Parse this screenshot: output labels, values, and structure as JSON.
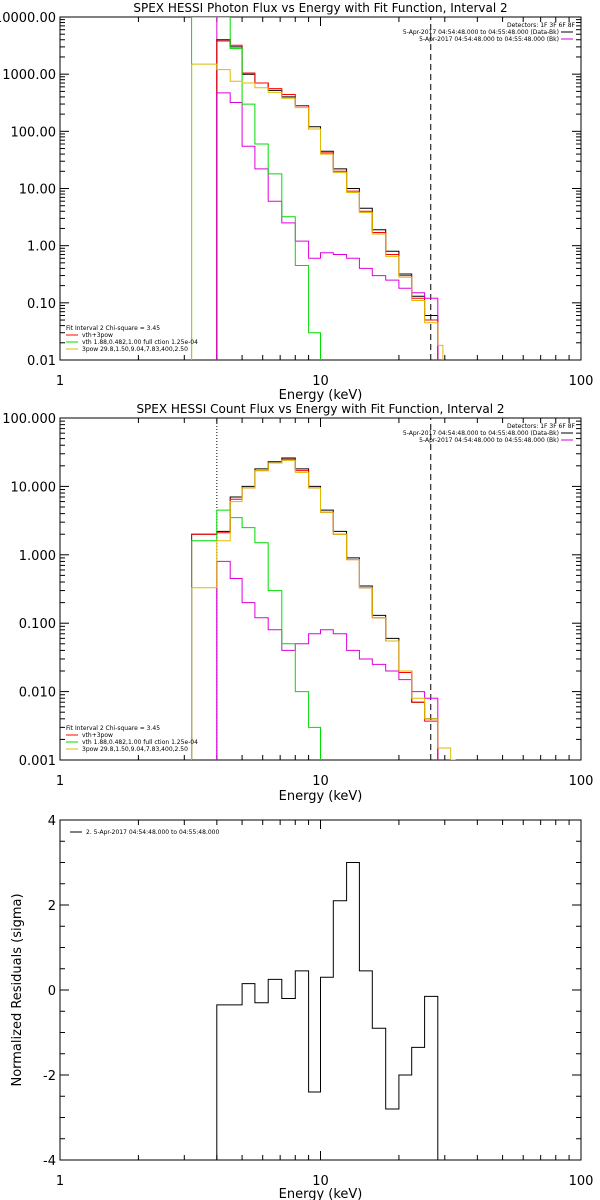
{
  "chart_data": [
    {
      "type": "line",
      "title": "SPEX HESSI Photon Flux vs Energy with Fit Function, Interval 2",
      "xlabel": "Energy (keV)",
      "ylabel": "",
      "xscale": "log",
      "yscale": "log",
      "xlim": [
        1,
        100
      ],
      "ylim": [
        0.01,
        10000
      ],
      "x_ticks": [
        "1",
        "10",
        "100"
      ],
      "y_ticks": [
        "10000.00",
        "1000.00",
        "100.00",
        "10.00",
        "1.00",
        "0.10",
        "0.01"
      ],
      "y_tick_values": [
        10000,
        1000,
        100,
        10,
        1,
        0.1,
        0.01
      ],
      "detectors_text": "Detectors: 1F 3F 6F 8F",
      "legend_right": [
        {
          "text": "5-Apr-2017 04:54:48.000 to 04:55:48.000 (Data-Bk)",
          "color": "#000000"
        },
        {
          "text": "5-Apr-2017 04:54:48.000 to 04:55:48.000 (Bk)",
          "color": "#dd00dd"
        }
      ],
      "legend_left_header": "Fit Interval 2   Chi-square = 3.45",
      "legend_left": [
        {
          "text": "vth+3pow",
          "color": "#ff0000"
        },
        {
          "text": "vth 1.88,0.482,1.00  full ction 1.25e-04",
          "color": "#00dd00"
        },
        {
          "text": "3pow 29.8,1.50,9.04,7.83,400,2.50",
          "color": "#ddbb00"
        }
      ],
      "vlines": [
        {
          "x": 4.0,
          "style": "solid",
          "color": "#dd00dd"
        },
        {
          "x": 26.5,
          "style": "dashed",
          "color": "#000000"
        }
      ],
      "series": [
        {
          "color": "#000000",
          "edges": [
            4,
            4.5,
            5,
            5.6,
            6.3,
            7.1,
            8,
            9,
            10,
            11.2,
            12.6,
            14.1,
            15.8,
            17.8,
            20,
            22.4,
            25.1,
            28.2
          ],
          "values": [
            4000,
            3000,
            1000,
            700,
            520,
            400,
            280,
            120,
            45,
            22,
            10,
            4.5,
            1.9,
            0.8,
            0.32,
            0.13,
            0.06
          ]
        },
        {
          "color": "#ff0000",
          "edges": [
            4,
            4.5,
            5,
            5.6,
            6.3,
            7.1,
            8,
            9,
            10,
            11.2,
            12.6,
            14.1,
            15.8,
            17.8,
            20,
            22.4,
            25.1,
            28.2
          ],
          "values": [
            3800,
            3200,
            1050,
            700,
            560,
            440,
            280,
            110,
            42,
            20,
            9,
            4,
            1.7,
            0.7,
            0.3,
            0.12,
            0.05
          ]
        },
        {
          "color": "#dd00dd",
          "edges": [
            4,
            4.5,
            5,
            5.6,
            6.3,
            7.1,
            8,
            9,
            10,
            11.2,
            12.6,
            14.1,
            15.8,
            17.8,
            20,
            22.4,
            25.1,
            28.2
          ],
          "values": [
            470,
            320,
            55,
            22,
            6,
            2.5,
            1.2,
            0.6,
            0.75,
            0.7,
            0.6,
            0.4,
            0.3,
            0.25,
            0.18,
            0.15,
            0.12
          ]
        },
        {
          "color": "#00dd00",
          "edges": [
            3.2,
            4,
            4.5,
            5,
            5.6,
            6.3,
            7.1,
            8,
            9,
            10
          ],
          "values": [
            10000,
            10000,
            2800,
            300,
            60,
            18,
            3.2,
            0.45,
            0.03
          ]
        },
        {
          "color": "#ddbb00",
          "edges": [
            3.2,
            4,
            4.5,
            5,
            5.6,
            6.3,
            7.1,
            8,
            9,
            10,
            11.2,
            12.6,
            14.1,
            15.8,
            17.8,
            20,
            22.4,
            25.1,
            28.2,
            29.5
          ],
          "values": [
            1500,
            1200,
            750,
            700,
            580,
            480,
            380,
            260,
            110,
            40,
            19,
            8.5,
            3.8,
            1.6,
            0.65,
            0.28,
            0.11,
            0.045,
            0.018
          ]
        }
      ]
    },
    {
      "type": "line",
      "title": "SPEX HESSI Count Flux vs Energy with Fit Function, Interval 2",
      "xlabel": "Energy (keV)",
      "ylabel": "",
      "xscale": "log",
      "yscale": "log",
      "xlim": [
        1,
        100
      ],
      "ylim": [
        0.001,
        100
      ],
      "x_ticks": [
        "1",
        "10",
        "100"
      ],
      "y_ticks": [
        "100.000",
        "10.000",
        "1.000",
        "0.100",
        "0.010",
        "0.001"
      ],
      "y_tick_values": [
        100,
        10,
        1,
        0.1,
        0.01,
        0.001
      ],
      "detectors_text": "Detectors: 1F 3F 6F 8F",
      "legend_right": [
        {
          "text": "5-Apr-2017 04:54:48.000 to 04:55:48.000 (Data-Bk)",
          "color": "#000000"
        },
        {
          "text": "5-Apr-2017 04:54:48.000 to 04:55:48.000 (Bk)",
          "color": "#dd00dd"
        }
      ],
      "legend_left_header": "Fit Interval 2   Chi-square = 3.45",
      "legend_left": [
        {
          "text": "vth+3pow",
          "color": "#ff0000"
        },
        {
          "text": "vth 1.88,0.482,1.00  full ction 1.25e-04",
          "color": "#00dd00"
        },
        {
          "text": "3pow 29.8,1.50,9.04,7.83,400,2.50",
          "color": "#ddbb00"
        }
      ],
      "vlines": [
        {
          "x": 4.0,
          "style": "dotted",
          "color": "#000000"
        },
        {
          "x": 4.0,
          "style": "solid",
          "color": "#dd00dd",
          "from": 0.001,
          "to": 0.8
        },
        {
          "x": 26.5,
          "style": "dashed",
          "color": "#000000"
        }
      ],
      "series": [
        {
          "color": "#000000",
          "edges": [
            3.2,
            4,
            4.5,
            5,
            5.6,
            6.3,
            7.1,
            8,
            9,
            10,
            11.2,
            12.6,
            14.1,
            15.8,
            17.8,
            20,
            22.4,
            25.1,
            28.2
          ],
          "values": [
            2.0,
            2.2,
            7,
            10,
            18,
            23,
            26,
            18,
            10,
            4.5,
            2.2,
            0.9,
            0.35,
            0.13,
            0.06,
            0.02,
            0.007,
            0.004
          ]
        },
        {
          "color": "#ff0000",
          "edges": [
            3.2,
            4,
            4.5,
            5,
            5.6,
            6.3,
            7.1,
            8,
            9,
            10,
            11.2,
            12.6,
            14.1,
            15.8,
            17.8,
            20,
            22.4,
            25.1,
            28.2
          ],
          "values": [
            2.0,
            2.1,
            6.5,
            9.5,
            17,
            22,
            25,
            17,
            9.5,
            4.2,
            2.0,
            0.85,
            0.33,
            0.12,
            0.055,
            0.019,
            0.007,
            0.0037
          ]
        },
        {
          "color": "#dd00dd",
          "edges": [
            4,
            4.5,
            5,
            5.6,
            6.3,
            7.1,
            8,
            9,
            10,
            11.2,
            12.6,
            14.1,
            15.8,
            17.8,
            20,
            22.4,
            25.1,
            28.2
          ],
          "values": [
            0.8,
            0.45,
            0.2,
            0.12,
            0.08,
            0.04,
            0.05,
            0.07,
            0.08,
            0.07,
            0.04,
            0.03,
            0.025,
            0.02,
            0.015,
            0.01,
            0.008
          ]
        },
        {
          "color": "#00dd00",
          "edges": [
            3.2,
            4,
            4.5,
            5,
            5.6,
            6.3,
            7.1,
            8,
            9,
            10
          ],
          "values": [
            1.6,
            4.5,
            3.5,
            2.5,
            1.5,
            0.3,
            0.05,
            0.01,
            0.003
          ]
        },
        {
          "color": "#ddbb00",
          "edges": [
            3.2,
            4,
            4.5,
            5,
            5.6,
            6.3,
            7.1,
            8,
            9,
            10,
            11.2,
            12.6,
            14.1,
            15.8,
            17.8,
            20,
            22.4,
            25.1,
            28.2,
            31.6,
            33
          ],
          "values": [
            0.33,
            1.6,
            6,
            9.5,
            17,
            22,
            24,
            16,
            9.5,
            4.2,
            2.0,
            0.85,
            0.33,
            0.12,
            0.055,
            0.02,
            0.008,
            0.004,
            0.0015,
            0.001
          ]
        }
      ]
    },
    {
      "type": "line",
      "title": "",
      "xlabel": "Energy (keV)",
      "ylabel": "Normalized Residuals (sigma)",
      "xscale": "log",
      "yscale": "linear",
      "xlim": [
        1,
        100
      ],
      "ylim": [
        -4,
        4
      ],
      "x_ticks": [
        "1",
        "10",
        "100"
      ],
      "y_ticks": [
        "4",
        "2",
        "0",
        "-2",
        "-4"
      ],
      "y_tick_values": [
        4,
        2,
        0,
        -2,
        -4
      ],
      "legend_right": [],
      "legend_left": [
        {
          "text": "2. 5-Apr-2017 04:54:48.000 to 04:55:48.000",
          "color": "#000000"
        }
      ],
      "vlines": [],
      "series": [
        {
          "color": "#000000",
          "edges": [
            4,
            4.5,
            5,
            5.6,
            6.3,
            7.1,
            8,
            9,
            10,
            11.2,
            12.6,
            14.1,
            15.8,
            17.8,
            20,
            22.4,
            25.1,
            28.2
          ],
          "values": [
            -0.35,
            -0.35,
            0.15,
            -0.3,
            0.25,
            -0.2,
            0.45,
            -2.4,
            0.3,
            2.1,
            3.0,
            0.45,
            -0.9,
            -2.8,
            -2.0,
            -1.35,
            -0.15
          ],
          "drop_to": -4
        }
      ]
    }
  ]
}
